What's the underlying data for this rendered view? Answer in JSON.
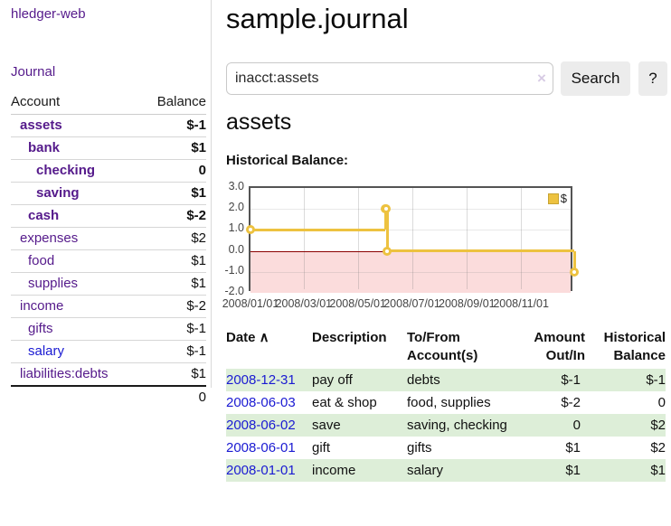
{
  "sidebar": {
    "brand": "hledger-web",
    "journal_link": "Journal",
    "accounts": {
      "col_account": "Account",
      "col_balance": "Balance",
      "rows": [
        {
          "name": "assets",
          "balance": "$-1",
          "level": 1,
          "bold": true,
          "balance_style": "neg-strong"
        },
        {
          "name": "bank",
          "balance": "$1",
          "level": 2,
          "bold": true,
          "balance_style": "pos"
        },
        {
          "name": "checking",
          "balance": "0",
          "level": 3,
          "bold": true,
          "balance_style": "pos"
        },
        {
          "name": "saving",
          "balance": "$1",
          "level": 3,
          "bold": true,
          "balance_style": "pos"
        },
        {
          "name": "cash",
          "balance": "$-2",
          "level": 2,
          "bold": true,
          "balance_style": "neg-strong"
        },
        {
          "name": "expenses",
          "balance": "$2",
          "level": 1,
          "bold": false,
          "balance_style": "pos"
        },
        {
          "name": "food",
          "balance": "$1",
          "level": 2,
          "bold": false,
          "balance_style": "pos"
        },
        {
          "name": "supplies",
          "balance": "$1",
          "level": 2,
          "bold": false,
          "balance_style": "pos"
        },
        {
          "name": "income",
          "balance": "$-2",
          "level": 1,
          "bold": false,
          "balance_style": "neg-faded"
        },
        {
          "name": "gifts",
          "balance": "$-1",
          "level": 2,
          "bold": false,
          "balance_style": "neg-faded"
        },
        {
          "name": "salary",
          "balance": "$-1",
          "level": 2,
          "bold": false,
          "balance_style": "neg-faded",
          "link_style": "blue"
        },
        {
          "name": "liabilities:debts",
          "balance": "$1",
          "level": 1,
          "bold": false,
          "balance_style": "pos"
        }
      ],
      "total": "0"
    }
  },
  "header": {
    "title": "sample.journal"
  },
  "search": {
    "value": "inacct:assets",
    "clear_icon": "×",
    "search_button": "Search",
    "help_button": "?"
  },
  "main": {
    "account_heading": "assets",
    "chart_title": "Historical Balance:"
  },
  "chart_data": {
    "type": "line",
    "step": true,
    "title": "Historical Balance",
    "legend": {
      "label": "$",
      "position": "top-right"
    },
    "series": [
      {
        "name": "$",
        "color": "#edc240",
        "points": [
          {
            "date": "2008-01-01",
            "value": 1
          },
          {
            "date": "2008-06-01",
            "value": 2
          },
          {
            "date": "2008-06-02",
            "value": 2
          },
          {
            "date": "2008-06-03",
            "value": 0
          },
          {
            "date": "2008-12-31",
            "value": -1
          }
        ]
      }
    ],
    "xlim": [
      "2008-01-01",
      "2008-12-31"
    ],
    "ylim": [
      -2,
      3
    ],
    "x_ticks": [
      {
        "date": "2008-01-01",
        "label": "2008/01/01"
      },
      {
        "date": "2008-03-01",
        "label": "2008/03/01"
      },
      {
        "date": "2008-05-01",
        "label": "2008/05/01"
      },
      {
        "date": "2008-07-01",
        "label": "2008/07/01"
      },
      {
        "date": "2008-09-01",
        "label": "2008/09/01"
      },
      {
        "date": "2008-11-01",
        "label": "2008/11/01"
      }
    ],
    "y_ticks": [
      {
        "value": 3,
        "label": "3.0"
      },
      {
        "value": 2,
        "label": "2.0"
      },
      {
        "value": 1,
        "label": "1.0"
      },
      {
        "value": 0,
        "label": "0.0"
      },
      {
        "value": -1,
        "label": "-1.0"
      },
      {
        "value": -2,
        "label": "-2.0"
      }
    ],
    "grid": true,
    "negative_region": {
      "from": 0,
      "to": -2,
      "color": "#fbdcdc"
    },
    "zero_line_color": "#8b0000"
  },
  "register": {
    "headers": [
      {
        "line1": "Date",
        "line2": "",
        "sort_icon": "∧",
        "align": "left"
      },
      {
        "line1": "Description",
        "line2": "",
        "align": "left"
      },
      {
        "line1": "To/From",
        "line2": "Account(s)",
        "align": "left"
      },
      {
        "line1": "Amount",
        "line2": "Out/In",
        "align": "right"
      },
      {
        "line1": "Historical",
        "line2": "Balance",
        "align": "right"
      }
    ],
    "rows": [
      {
        "date": "2008-12-31",
        "description": "pay off",
        "accounts": "debts",
        "amount": "$-1",
        "amount_neg": true,
        "balance": "$-1",
        "balance_neg": true,
        "striped": true
      },
      {
        "date": "2008-06-03",
        "description": "eat & shop",
        "accounts": "food, supplies",
        "amount": "$-2",
        "amount_neg": true,
        "balance": "0",
        "balance_neg": false,
        "striped": false
      },
      {
        "date": "2008-06-02",
        "description": "save",
        "accounts": "saving, checking",
        "amount": "0",
        "amount_neg": false,
        "balance": "$2",
        "balance_neg": false,
        "striped": true
      },
      {
        "date": "2008-06-01",
        "description": "gift",
        "accounts": "gifts",
        "amount": "$1",
        "amount_neg": false,
        "balance": "$2",
        "balance_neg": false,
        "striped": false
      },
      {
        "date": "2008-01-01",
        "description": "income",
        "accounts": "salary",
        "amount": "$1",
        "amount_neg": false,
        "balance": "$1",
        "balance_neg": false,
        "striped": true
      }
    ]
  },
  "colors": {
    "link_purple": "#551a8b",
    "link_blue": "#1a1ad2",
    "negative_strong": "#8e1a1a",
    "negative_faded": "#c28989",
    "stripe_green": "#ddeed8",
    "series_yellow": "#edc240",
    "chart_border": "#545454"
  }
}
